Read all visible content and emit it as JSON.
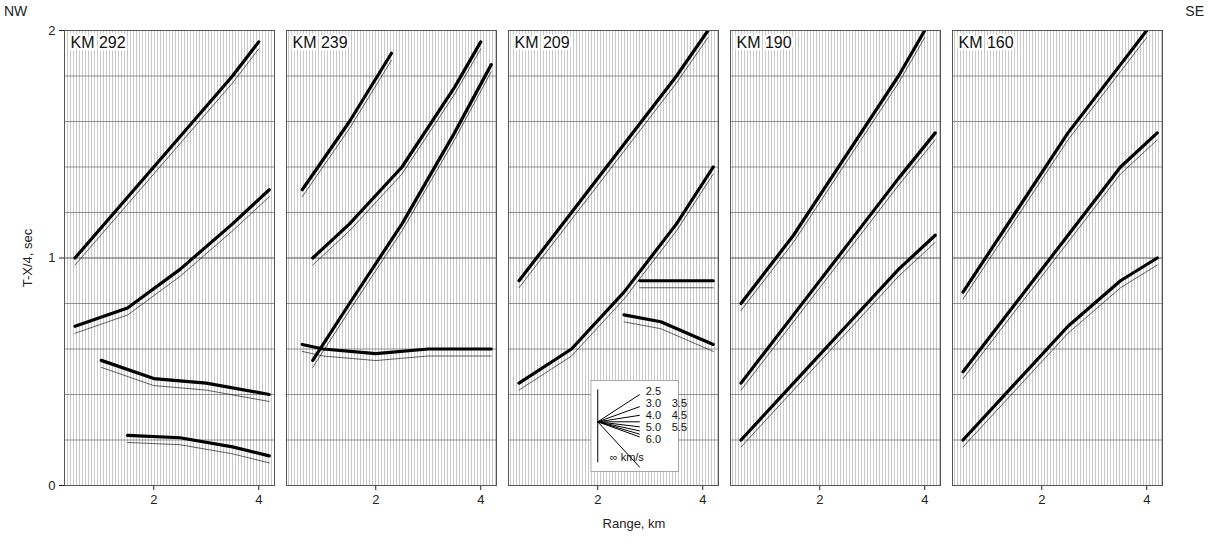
{
  "chart_data": {
    "type": "line",
    "corner_labels": [
      "NW",
      "SE"
    ],
    "xlabel": "Range, km",
    "ylabel": "T-X/4, sec",
    "xlim": [
      0.3,
      4.3
    ],
    "xticks": [
      2,
      4
    ],
    "ylim": [
      0,
      2
    ],
    "yticks": [
      0,
      1,
      2
    ],
    "grid": true,
    "y_grid": [
      0.2,
      0.4,
      0.6,
      0.8,
      1.2,
      1.4,
      1.6,
      1.8
    ],
    "color": "#000000",
    "panels": [
      {
        "title": "KM 292",
        "events": [
          {
            "x": [
              1.5,
              2.5,
              3.5,
              4.2
            ],
            "y": [
              0.22,
              0.21,
              0.17,
              0.13
            ]
          },
          {
            "x": [
              1.0,
              2.0,
              3.0,
              4.2
            ],
            "y": [
              0.55,
              0.47,
              0.45,
              0.4
            ]
          },
          {
            "x": [
              0.5,
              1.5,
              2.5,
              3.5,
              4.2
            ],
            "y": [
              0.7,
              0.78,
              0.95,
              1.15,
              1.3
            ]
          },
          {
            "x": [
              0.5,
              2.0,
              3.5,
              4.0
            ],
            "y": [
              1.0,
              1.4,
              1.8,
              1.95
            ]
          }
        ]
      },
      {
        "title": "KM 239",
        "events": [
          {
            "x": [
              0.6,
              1.0,
              2.0,
              3.0,
              4.2
            ],
            "y": [
              0.62,
              0.6,
              0.58,
              0.6,
              0.6
            ]
          },
          {
            "x": [
              0.8,
              1.5,
              2.5,
              3.5,
              4.2
            ],
            "y": [
              0.55,
              0.8,
              1.15,
              1.55,
              1.85
            ]
          },
          {
            "x": [
              0.8,
              1.5,
              2.5,
              3.5,
              4.0
            ],
            "y": [
              1.0,
              1.15,
              1.4,
              1.75,
              1.95
            ]
          },
          {
            "x": [
              0.6,
              1.5,
              2.3
            ],
            "y": [
              1.3,
              1.6,
              1.9
            ]
          }
        ]
      },
      {
        "title": "KM 209",
        "events": [
          {
            "x": [
              0.5,
              1.5,
              2.5,
              3.5,
              4.2
            ],
            "y": [
              0.45,
              0.6,
              0.85,
              1.15,
              1.4
            ]
          },
          {
            "x": [
              2.5,
              3.2,
              4.2
            ],
            "y": [
              0.75,
              0.72,
              0.62
            ]
          },
          {
            "x": [
              2.8,
              4.2
            ],
            "y": [
              0.9,
              0.9
            ]
          },
          {
            "x": [
              0.5,
              1.5,
              2.5,
              3.5,
              4.1
            ],
            "y": [
              0.9,
              1.2,
              1.5,
              1.8,
              2.0
            ]
          }
        ]
      },
      {
        "title": "KM 190",
        "events": [
          {
            "x": [
              0.5,
              1.5,
              2.5,
              3.5,
              4.2
            ],
            "y": [
              0.2,
              0.45,
              0.7,
              0.95,
              1.1
            ]
          },
          {
            "x": [
              0.5,
              1.5,
              2.5,
              3.5,
              4.2
            ],
            "y": [
              0.45,
              0.75,
              1.05,
              1.35,
              1.55
            ]
          },
          {
            "x": [
              0.5,
              1.5,
              2.5,
              3.5,
              4.0
            ],
            "y": [
              0.8,
              1.1,
              1.45,
              1.8,
              2.0
            ]
          }
        ]
      },
      {
        "title": "KM 160",
        "events": [
          {
            "x": [
              0.5,
              1.5,
              2.5,
              3.5,
              4.2
            ],
            "y": [
              0.2,
              0.45,
              0.7,
              0.9,
              1.0
            ]
          },
          {
            "x": [
              0.5,
              1.5,
              2.5,
              3.5,
              4.2
            ],
            "y": [
              0.5,
              0.8,
              1.1,
              1.4,
              1.55
            ]
          },
          {
            "x": [
              0.5,
              1.5,
              2.5,
              3.5,
              4.0
            ],
            "y": [
              0.85,
              1.2,
              1.55,
              1.85,
              2.0
            ]
          }
        ]
      }
    ],
    "velocity_key": {
      "panel": "KM 209",
      "labels": [
        "2.5",
        "3.0",
        "3.5",
        "4.0",
        "4.5",
        "5.0",
        "5.5",
        "6.0",
        "∞ km/s"
      ],
      "slopes": [
        0.15,
        0.0833,
        0.0357,
        0,
        -0.0278,
        -0.05,
        -0.0682,
        -0.0833,
        -0.25
      ]
    }
  }
}
